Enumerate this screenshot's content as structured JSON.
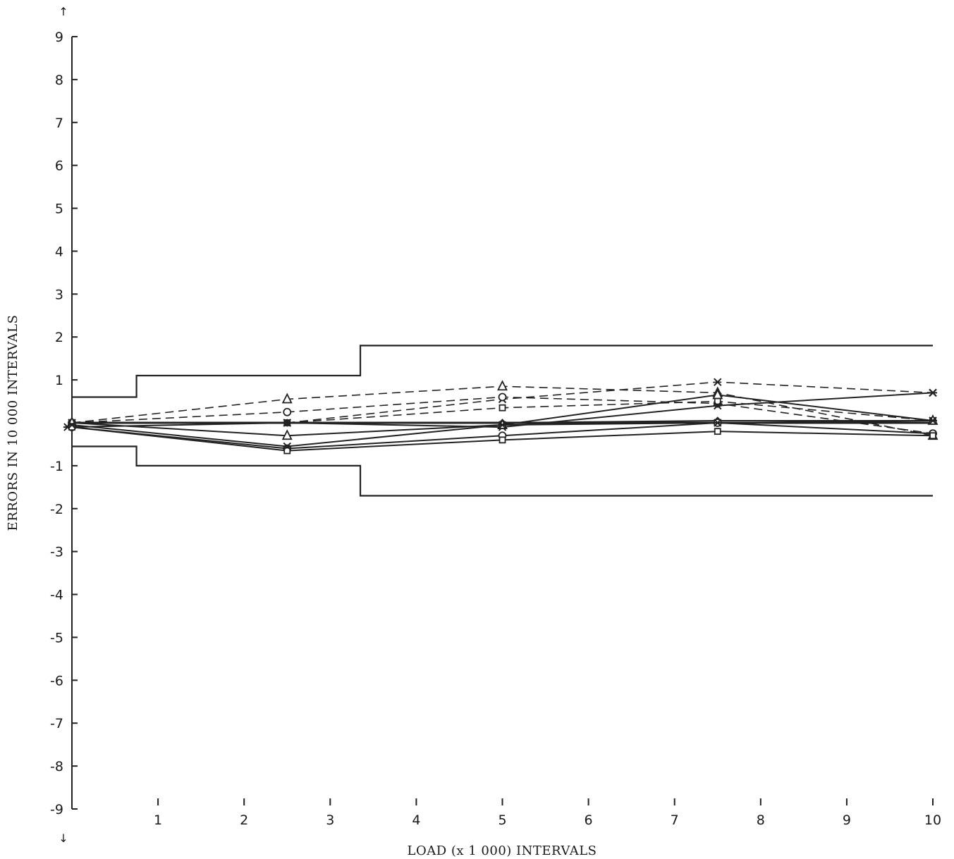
{
  "chart_data": {
    "type": "line",
    "title": "",
    "xlabel": "LOAD (x 1 000) INTERVALS",
    "ylabel": "ERRORS IN 10 000 INTERVALS",
    "xlim": [
      0,
      10
    ],
    "ylim": [
      -9,
      9
    ],
    "x_ticks": [
      1,
      2,
      3,
      4,
      5,
      6,
      7,
      8,
      9,
      10
    ],
    "x_tick_labels": [
      "1",
      "2",
      "3",
      "4",
      "5",
      "6",
      "7",
      "8",
      "9",
      "10"
    ],
    "y_ticks": [
      9,
      8,
      7,
      6,
      5,
      4,
      3,
      2,
      1,
      -1,
      -2,
      -3,
      -4,
      -5,
      -6,
      -7,
      -8,
      -9
    ],
    "y_tick_labels": [
      "9",
      "8",
      "7",
      "6",
      "5",
      "4",
      "3",
      "2",
      "1",
      "-1",
      "-2",
      "-3",
      "-4",
      "-5",
      "-6",
      "-7",
      "-8",
      "-9"
    ],
    "y_arrow_up": "↑",
    "y_arrow_down": "↓",
    "grid": false,
    "legend": "none",
    "tolerance_envelope": {
      "upper": [
        [
          0,
          0.6
        ],
        [
          0.75,
          0.6
        ],
        [
          0.75,
          1.1
        ],
        [
          3.35,
          1.1
        ],
        [
          3.35,
          1.8
        ],
        [
          10,
          1.8
        ]
      ],
      "lower": [
        [
          0,
          -0.55
        ],
        [
          0.75,
          -0.55
        ],
        [
          0.75,
          -1.0
        ],
        [
          3.35,
          -1.0
        ],
        [
          3.35,
          -1.7
        ],
        [
          10,
          -1.7
        ]
      ]
    },
    "series": [
      {
        "marker": "triangle",
        "style": "dashed",
        "x": [
          0,
          2.5,
          5,
          7.5,
          10
        ],
        "y": [
          0,
          0.55,
          0.85,
          0.7,
          -0.3
        ]
      },
      {
        "marker": "x",
        "style": "dashed",
        "x": [
          0,
          2.5,
          5,
          7.5,
          10
        ],
        "y": [
          0,
          0.0,
          0.55,
          0.95,
          0.7
        ]
      },
      {
        "marker": "circle",
        "style": "dashed",
        "x": [
          0,
          2.5,
          5,
          7.5,
          10
        ],
        "y": [
          0,
          0.25,
          0.6,
          0.45,
          -0.25
        ]
      },
      {
        "marker": "square",
        "style": "dashed",
        "x": [
          0,
          2.5,
          5,
          7.5,
          10
        ],
        "y": [
          0,
          0.0,
          0.35,
          0.5,
          0.05
        ]
      },
      {
        "marker": "star",
        "style": "solid",
        "x": [
          -0.05,
          2.5,
          5,
          7.5,
          10
        ],
        "y": [
          -0.1,
          0.0,
          -0.1,
          0.4,
          0.7
        ]
      },
      {
        "marker": "diamond",
        "style": "solid",
        "x": [
          0,
          2.5,
          5,
          7.5,
          10
        ],
        "y": [
          0,
          0.0,
          0.0,
          0.05,
          0.05
        ]
      },
      {
        "marker": "triangle",
        "style": "solid",
        "x": [
          0,
          2.5,
          5,
          7.5,
          10
        ],
        "y": [
          0,
          -0.3,
          -0.05,
          0.65,
          0.05
        ]
      },
      {
        "marker": "circle",
        "style": "solid",
        "x": [
          0,
          2.5,
          5,
          7.5,
          10
        ],
        "y": [
          -0.1,
          -0.6,
          -0.3,
          0.0,
          -0.25
        ]
      },
      {
        "marker": "square",
        "style": "solid",
        "x": [
          0,
          2.5,
          5,
          7.5,
          10
        ],
        "y": [
          -0.1,
          -0.65,
          -0.4,
          -0.2,
          -0.3
        ]
      },
      {
        "marker": "star",
        "style": "solid",
        "x": [
          0,
          2.5,
          5,
          7.5,
          10
        ],
        "y": [
          -0.05,
          -0.55,
          -0.05,
          0.0,
          0.05
        ]
      }
    ]
  }
}
